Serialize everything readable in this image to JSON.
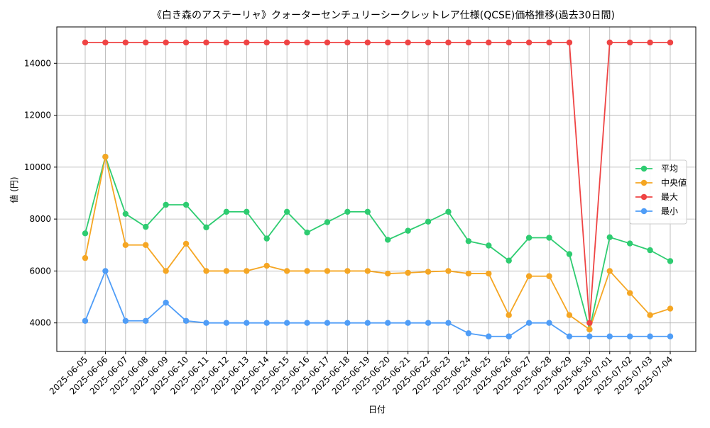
{
  "chart_data": {
    "type": "line",
    "title": "《白き森のアステーリャ》クォーターセンチュリーシークレットレア仕様(QCSE)価格推移(過去30日間)",
    "xlabel": "日付",
    "ylabel": "値 (円)",
    "ylim": [
      2900,
      15400
    ],
    "yticks": [
      4000,
      6000,
      8000,
      10000,
      12000,
      14000
    ],
    "grid": true,
    "legend_position": "center-right",
    "categories": [
      "2025-06-05",
      "2025-06-06",
      "2025-06-07",
      "2025-06-08",
      "2025-06-09",
      "2025-06-10",
      "2025-06-11",
      "2025-06-12",
      "2025-06-13",
      "2025-06-14",
      "2025-06-15",
      "2025-06-16",
      "2025-06-17",
      "2025-06-18",
      "2025-06-19",
      "2025-06-20",
      "2025-06-21",
      "2025-06-22",
      "2025-06-23",
      "2025-06-24",
      "2025-06-25",
      "2025-06-26",
      "2025-06-27",
      "2025-06-28",
      "2025-06-29",
      "2025-06-30",
      "2025-07-01",
      "2025-07-02",
      "2025-07-03",
      "2025-07-04"
    ],
    "series": [
      {
        "name": "平均",
        "color": "#2ecc71",
        "values": [
          7450,
          10400,
          8200,
          7700,
          8550,
          8550,
          7680,
          8280,
          8280,
          7250,
          8280,
          7480,
          7880,
          8280,
          8280,
          7200,
          7550,
          7900,
          8280,
          7150,
          6980,
          6400,
          7280,
          7280,
          6650,
          3750,
          7300,
          7060,
          6800,
          6380
        ]
      },
      {
        "name": "中央値",
        "color": "#f5a623",
        "values": [
          6500,
          10400,
          7000,
          7000,
          6000,
          7050,
          6000,
          6000,
          6000,
          6200,
          6000,
          6000,
          6000,
          6000,
          6000,
          5900,
          5930,
          5970,
          6000,
          5900,
          5900,
          4300,
          5800,
          5800,
          4300,
          3750,
          6000,
          5150,
          4300,
          4550
        ]
      },
      {
        "name": "最大",
        "color": "#ef4444",
        "values": [
          14800,
          14800,
          14800,
          14800,
          14800,
          14800,
          14800,
          14800,
          14800,
          14800,
          14800,
          14800,
          14800,
          14800,
          14800,
          14800,
          14800,
          14800,
          14800,
          14800,
          14800,
          14800,
          14800,
          14800,
          14800,
          4000,
          14800,
          14800,
          14800,
          14800
        ]
      },
      {
        "name": "最小",
        "color": "#4f9df7",
        "values": [
          4080,
          6000,
          4080,
          4080,
          4780,
          4080,
          4000,
          4000,
          4000,
          4000,
          4000,
          4000,
          4000,
          4000,
          4000,
          4000,
          4000,
          4000,
          4000,
          3600,
          3480,
          3480,
          4000,
          4000,
          3480,
          3480,
          3480,
          3480,
          3480,
          3480
        ]
      }
    ]
  }
}
